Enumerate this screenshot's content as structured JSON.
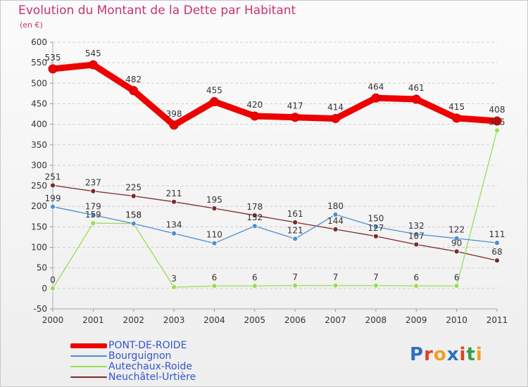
{
  "title": "Evolution du Montant de la Dette par Habitant",
  "unit": "(en €)",
  "logo": "Proxiti",
  "chart_data": {
    "type": "line",
    "title": "Evolution du Montant de la Dette par Habitant",
    "ylabel": "(en €)",
    "ylim": [
      -50,
      600
    ],
    "ytick_step": 50,
    "grid": "horizontal dashed",
    "legend_position": "bottom-left",
    "x": [
      "2000",
      "2001",
      "2002",
      "2003",
      "2004",
      "2005",
      "2006",
      "2007",
      "2008",
      "2009",
      "2010",
      "2011"
    ],
    "series": [
      {
        "name": "PONT-DE-ROIDE",
        "color": "#ee0000",
        "values": [
          535,
          545,
          482,
          398,
          455,
          420,
          417,
          414,
          464,
          461,
          415,
          408
        ]
      },
      {
        "name": "Bourguignon",
        "color": "#4f8fcf",
        "values": [
          199,
          179,
          158,
          134,
          110,
          152,
          121,
          180,
          150,
          132,
          122,
          111
        ]
      },
      {
        "name": "Autechaux-Roide",
        "color": "#99dd55",
        "values": [
          0,
          159,
          158,
          3,
          6,
          6,
          7,
          7,
          7,
          6,
          6,
          385
        ]
      },
      {
        "name": "Neuchâtel-Urtière",
        "color": "#7a2a2a",
        "values": [
          251,
          237,
          225,
          211,
          195,
          178,
          161,
          144,
          127,
          107,
          90,
          68
        ]
      }
    ],
    "labels": [
      {
        "series": 0,
        "text": [
          "535",
          "545",
          "482",
          "398",
          "455",
          "420",
          "417",
          "414",
          "464",
          "461",
          "415",
          "408"
        ]
      },
      {
        "series": 1,
        "text": [
          "199",
          "179",
          "158",
          "134",
          "110",
          "152",
          "121",
          "180",
          "150",
          "132",
          "122",
          "111"
        ]
      },
      {
        "series": 2,
        "text": [
          "0",
          "159",
          "158",
          "3",
          "6",
          "6",
          "7",
          "7",
          "7",
          "6",
          "6",
          "385"
        ]
      },
      {
        "series": 3,
        "text": [
          "251",
          "237",
          "225",
          "211",
          "195",
          "178",
          "161",
          "144",
          "127",
          "107",
          "90",
          "68"
        ]
      }
    ]
  }
}
